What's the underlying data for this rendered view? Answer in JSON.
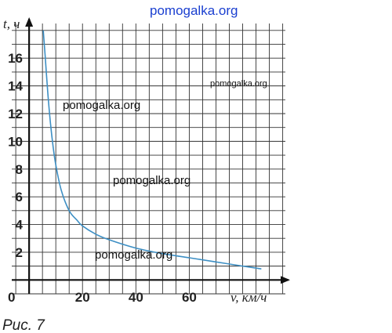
{
  "chart_data": {
    "type": "line",
    "xlabel": "v, км/ч",
    "ylabel": "t, ч",
    "origin_label": "0",
    "xlim": [
      -6.5,
      96
    ],
    "ylim": [
      -1,
      18.5
    ],
    "x_ticks": [
      20,
      40,
      60
    ],
    "y_ticks": [
      2,
      4,
      6,
      8,
      10,
      12,
      14,
      16
    ],
    "grid": true,
    "series": [
      {
        "color": "#3d8fc4",
        "x": [
          5.3,
          6,
          7,
          8,
          9,
          10,
          12,
          15,
          18,
          20,
          25,
          30,
          40,
          50,
          60,
          70,
          80,
          87
        ],
        "y": [
          18,
          16.2,
          13.5,
          11.3,
          9.6,
          8.3,
          6.5,
          5,
          4.3,
          3.9,
          3.3,
          2.9,
          2.3,
          1.9,
          1.6,
          1.3,
          1.0,
          0.8
        ]
      }
    ]
  },
  "watermarks": {
    "top": "pomogalka.org",
    "items": [
      "pomogalka.org",
      "pomogalka.org",
      "pomogalka.org",
      "pomogalka.org"
    ]
  },
  "caption": "Рис. 7"
}
